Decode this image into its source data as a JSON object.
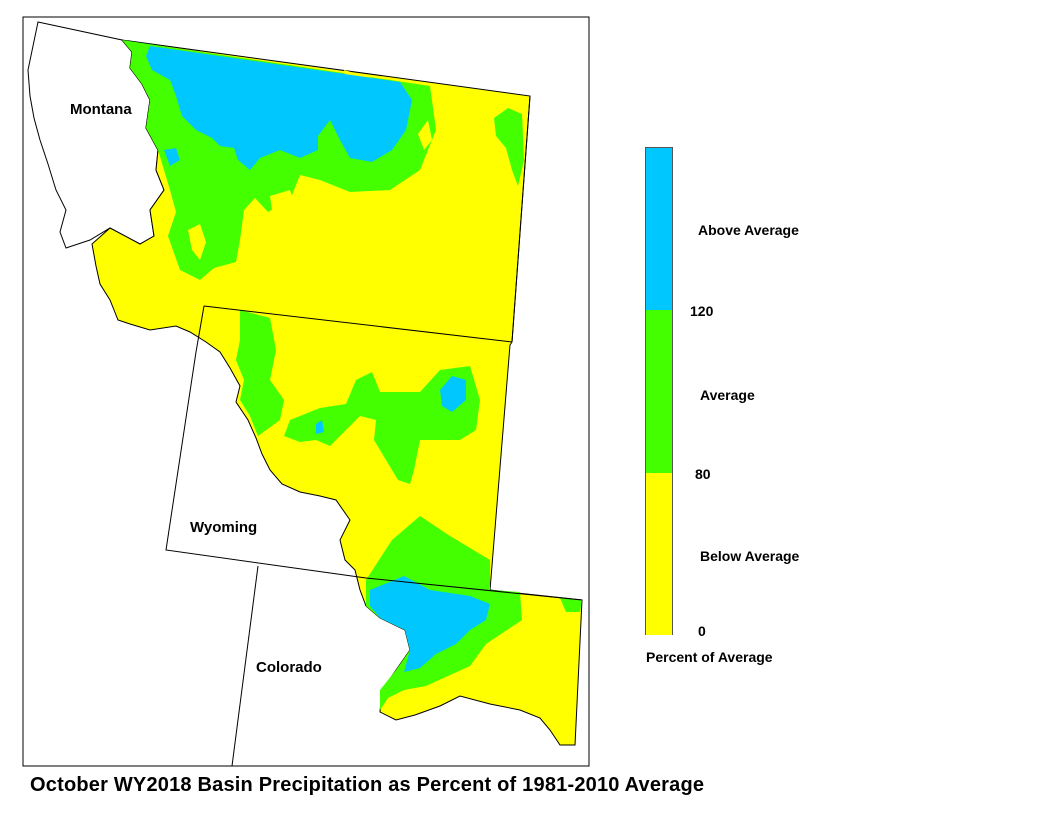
{
  "map": {
    "labels": {
      "montana": "Montana",
      "wyoming": "Wyoming",
      "colorado": "Colorado"
    },
    "colors": {
      "above": "#00c8ff",
      "average": "#44ff00",
      "below": "#ffff00",
      "outline": "#000000"
    }
  },
  "legend": {
    "categories": [
      {
        "label": "Above Average",
        "range": [
          120,
          null
        ],
        "color": "#00c8ff"
      },
      {
        "label": "Average",
        "range": [
          80,
          120
        ],
        "color": "#44ff00"
      },
      {
        "label": "Below Average",
        "range": [
          0,
          80
        ],
        "color": "#ffff00"
      }
    ],
    "tick_labels": [
      "120",
      "80",
      "0"
    ],
    "title": "Percent of Average"
  },
  "title": "October WY2018 Basin Precipitation as Percent of 1981-2010 Average"
}
